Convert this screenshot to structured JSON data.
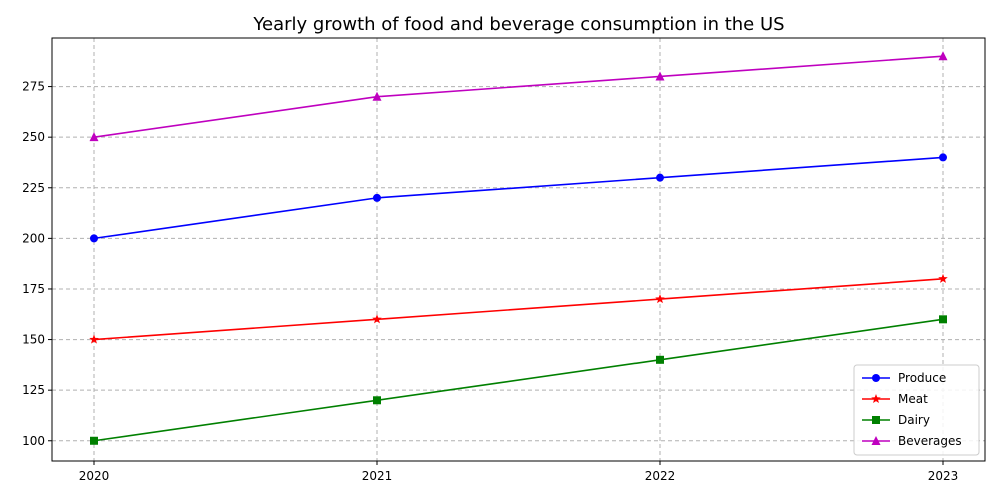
{
  "chart_data": {
    "type": "line",
    "title": "Yearly growth of food and beverage consumption in the US",
    "xlabel": "",
    "ylabel": "",
    "categories": [
      "2020",
      "2021",
      "2022",
      "2023"
    ],
    "ylim": [
      90,
      299
    ],
    "yticks": [
      "100",
      "125",
      "150",
      "175",
      "200",
      "225",
      "250",
      "275"
    ],
    "grid": true,
    "legend_position": "lower-right",
    "series": [
      {
        "name": "Produce",
        "values": [
          200,
          220,
          230,
          240
        ],
        "color": "#0000ff",
        "marker": "circle"
      },
      {
        "name": "Meat",
        "values": [
          150,
          160,
          170,
          180
        ],
        "color": "#ff0000",
        "marker": "star"
      },
      {
        "name": "Dairy",
        "values": [
          100,
          120,
          140,
          160
        ],
        "color": "#008000",
        "marker": "square"
      },
      {
        "name": "Beverages",
        "values": [
          250,
          270,
          280,
          290
        ],
        "color": "#bf00bf",
        "marker": "triangle"
      }
    ]
  }
}
